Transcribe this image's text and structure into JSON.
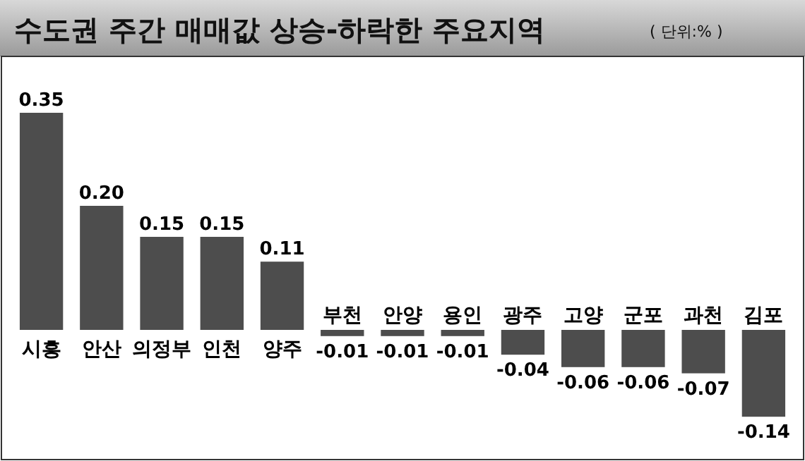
{
  "chart_data": {
    "type": "bar",
    "title": "수도권 주간 매매값 상승-하락한 주요지역",
    "subtitle": "( 단위:% )",
    "categories": [
      "시흥",
      "안산",
      "의정부",
      "인천",
      "양주",
      "부천",
      "안양",
      "용인",
      "광주",
      "고양",
      "군포",
      "과천",
      "김포"
    ],
    "values": [
      0.35,
      0.2,
      0.15,
      0.15,
      0.11,
      -0.01,
      -0.01,
      -0.01,
      -0.04,
      -0.06,
      -0.06,
      -0.07,
      -0.14
    ],
    "value_labels": [
      "0.35",
      "0.20",
      "0.15",
      "0.15",
      "0.11",
      "-0.01",
      "-0.01",
      "-0.01",
      "-0.04",
      "-0.06",
      "-0.06",
      "-0.07",
      "-0.14"
    ],
    "color": "#4d4d4d"
  }
}
